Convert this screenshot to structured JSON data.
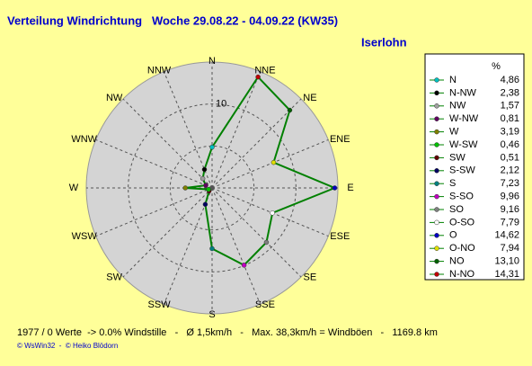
{
  "chart_data": {
    "type": "radar",
    "title": "Verteilung Windrichtung   Woche 29.08.22 - 04.09.22 (KW35)",
    "subtitle": "Iserlohn",
    "categories": [
      "N",
      "NNE",
      "NE",
      "ENE",
      "E",
      "ESE",
      "SE",
      "SSE",
      "S",
      "SSW",
      "SW",
      "WSW",
      "W",
      "WNW",
      "NW",
      "NNW"
    ],
    "legend_names": [
      "N",
      "N-NO",
      "NO",
      "O-NO",
      "O",
      "O-SO",
      "SO",
      "S-SO",
      "S",
      "S-SW",
      "SW",
      "W-SW",
      "W",
      "W-NW",
      "NW",
      "N-NW"
    ],
    "values": [
      4.86,
      14.31,
      13.1,
      7.94,
      14.62,
      7.79,
      9.16,
      9.96,
      7.23,
      2.12,
      0.51,
      0.46,
      3.19,
      0.81,
      1.57,
      2.38
    ],
    "value_labels": [
      "4,86",
      "14,31",
      "13,10",
      "7,94",
      "14,62",
      "7,79",
      "9,16",
      "9,96",
      "7,23",
      "2,12",
      "0,51",
      "0,46",
      "3,19",
      "0,81",
      "1,57",
      "2,38"
    ],
    "colors": [
      "#00c0c0",
      "#c00000",
      "#006000",
      "#e0e000",
      "#0000c0",
      "#ffffff",
      "#808080",
      "#c000c0",
      "#008080",
      "#000060",
      "#600000",
      "#00c000",
      "#808000",
      "#600060",
      "#a0a0a0",
      "#000000"
    ],
    "line_color": "#008000",
    "legend_header": "%",
    "rlim": [
      0,
      15
    ],
    "rgrid": [
      5,
      10
    ],
    "rticks": [
      10
    ],
    "footer": "1977 / 0 Werte  -> 0.0% Windstille   -   Ø 1,5km/h   -   Max. 38,3km/h = Windböen   -   1169.8 km",
    "credits": "© WsWin32  -  © Heiko Blödorn"
  }
}
